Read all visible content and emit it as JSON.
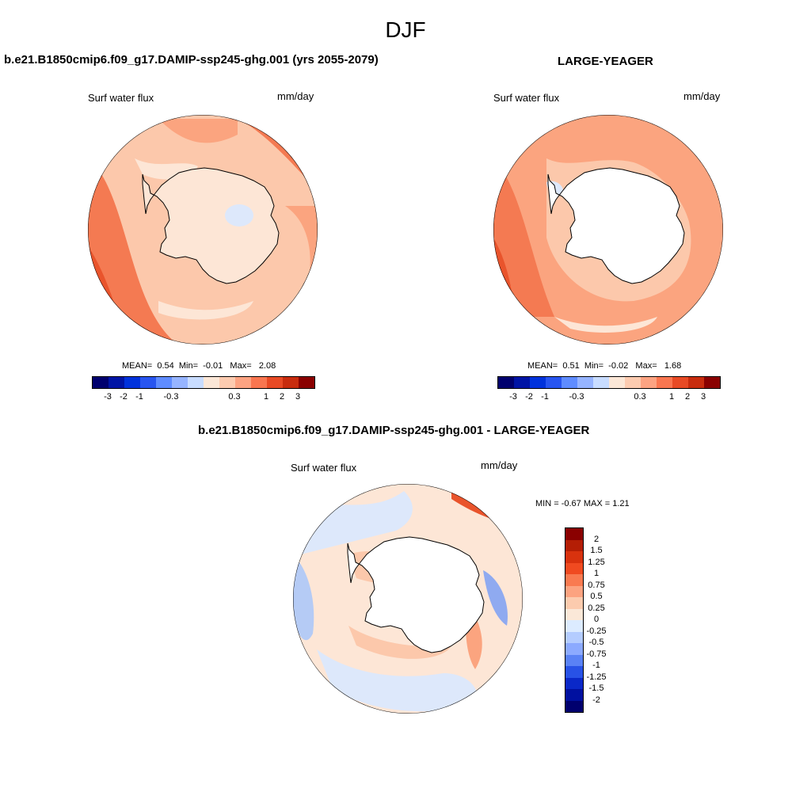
{
  "page": {
    "title": "DJF"
  },
  "panels": [
    {
      "title": "b.e21.B1850cmip6.f09_g17.DAMIP-ssp245-ghg.001 (yrs 2055-2079)",
      "left_label": "Surf water flux",
      "units": "mm/day",
      "stats": {
        "mean_label": "MEAN=",
        "mean": "0.54",
        "min_label": "Min=",
        "min": "-0.01",
        "max_label": "Max=",
        "max": "2.08"
      }
    },
    {
      "title": "LARGE-YEAGER",
      "left_label": "Surf water flux",
      "units": "mm/day",
      "stats": {
        "mean_label": "MEAN=",
        "mean": "0.51",
        "min_label": "Min=",
        "min": "-0.02",
        "max_label": "Max=",
        "max": "1.68"
      }
    },
    {
      "title": "b.e21.B1850cmip6.f09_g17.DAMIP-ssp245-ghg.001 - LARGE-YEAGER",
      "left_label": "Surf water flux",
      "units": "mm/day",
      "minmax_label": "MIN =  -0.67 MAX =   1.21"
    }
  ],
  "colorbar_horizontal": {
    "colors": [
      "#00006e",
      "#0014a5",
      "#0032dc",
      "#2855f0",
      "#5f8cff",
      "#96b4ff",
      "#c8dcff",
      "#fbe7d7",
      "#fccbb0",
      "#fca382",
      "#f97650",
      "#e84a25",
      "#c82c0e",
      "#8a0000"
    ],
    "tick_labels": [
      "-3",
      "-2",
      "-1",
      "-0.3",
      "0.3",
      "1",
      "2",
      "3"
    ]
  },
  "colorbar_vertical": {
    "colors": [
      "#8a0000",
      "#b41e05",
      "#d8320e",
      "#f04a20",
      "#f97a50",
      "#fca380",
      "#fccbae",
      "#fbe8d8",
      "#dcebff",
      "#b4ccff",
      "#8caaff",
      "#5a82f5",
      "#2852e6",
      "#0a28c8",
      "#0010a0",
      "#00006e"
    ],
    "tick_labels": [
      "2",
      "1.5",
      "1.25",
      "1",
      "0.75",
      "0.5",
      "0.25",
      "0",
      "-0.25",
      "-0.5",
      "-0.75",
      "-1",
      "-1.25",
      "-1.5",
      "-2"
    ]
  },
  "map_colors": {
    "land": "#ffffff",
    "coast": "#000000",
    "pos_1": "#fde6d6",
    "pos_2": "#fcc8ab",
    "pos_3": "#fba47f",
    "pos_4": "#f47a52",
    "pos_5": "#e9542c",
    "neg_1": "#dde8fb",
    "neg_2": "#b5cbf5",
    "neg_3": "#8faaf0"
  }
}
